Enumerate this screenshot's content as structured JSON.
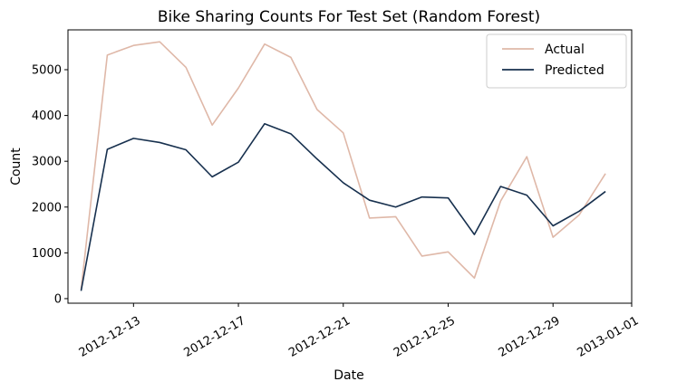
{
  "chart_data": {
    "type": "line",
    "title": "Bike Sharing Counts For Test Set (Random Forest)",
    "xlabel": "Date",
    "ylabel": "Count",
    "x": [
      "2012-12-11",
      "2012-12-12",
      "2012-12-13",
      "2012-12-14",
      "2012-12-15",
      "2012-12-16",
      "2012-12-17",
      "2012-12-18",
      "2012-12-19",
      "2012-12-20",
      "2012-12-21",
      "2012-12-22",
      "2012-12-23",
      "2012-12-24",
      "2012-12-25",
      "2012-12-26",
      "2012-12-27",
      "2012-12-28",
      "2012-12-29",
      "2012-12-30",
      "2012-12-31"
    ],
    "xlim": [
      "2012-12-10 12:00",
      "2013-01-01"
    ],
    "ylim": [
      -100,
      5870
    ],
    "xticks": [
      "2012-12-13",
      "2012-12-17",
      "2012-12-21",
      "2012-12-25",
      "2012-12-29",
      "2013-01-01"
    ],
    "yticks": [
      0,
      1000,
      2000,
      3000,
      4000,
      5000
    ],
    "grid": false,
    "legend_position": "top-right",
    "series": [
      {
        "name": "Actual",
        "color": "#dfb8a8",
        "values": [
          200,
          5320,
          5530,
          5610,
          5050,
          3790,
          4600,
          5560,
          5270,
          4130,
          3620,
          1760,
          1790,
          930,
          1020,
          450,
          2130,
          3100,
          1340,
          1830,
          2730
        ]
      },
      {
        "name": "Predicted",
        "color": "#17304e",
        "values": [
          170,
          3260,
          3500,
          3410,
          3250,
          2660,
          2980,
          3820,
          3600,
          3050,
          2530,
          2150,
          2000,
          2220,
          2200,
          1400,
          2450,
          2260,
          1590,
          1910,
          2340
        ]
      }
    ]
  }
}
